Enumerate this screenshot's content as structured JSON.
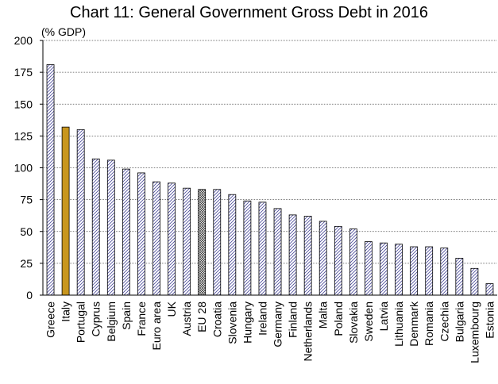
{
  "chart_data": {
    "type": "bar",
    "title": "Chart 11: General Government Gross Debt in 2016",
    "unit_label": "(% GDP)",
    "ylim": [
      0,
      200
    ],
    "yticks": [
      0,
      25,
      50,
      75,
      100,
      125,
      150,
      175,
      200
    ],
    "grid": "horizontal dotted",
    "categories": [
      "Greece",
      "Italy",
      "Portugal",
      "Cyprus",
      "Belgium",
      "Spain",
      "France",
      "Euro area",
      "UK",
      "Austria",
      "EU 28",
      "Croatia",
      "Slovenia",
      "Hungary",
      "Ireland",
      "Germany",
      "Finland",
      "Netherlands",
      "Malta",
      "Poland",
      "Slovakia",
      "Sweden",
      "Latvia",
      "Lithuania",
      "Denmark",
      "Romania",
      "Czechia",
      "Bulgaria",
      "Luxembourg",
      "Estonia"
    ],
    "values": [
      181,
      132,
      130,
      107,
      106,
      99,
      96,
      89,
      88,
      84,
      83,
      83,
      79,
      74,
      73,
      68,
      63,
      62,
      58,
      54,
      52,
      42,
      41,
      40,
      38,
      38,
      37,
      29,
      21,
      9
    ],
    "bar_styles": {
      "default": "diagonal-hatch",
      "highlight": {
        "Italy": "#c8961e"
      },
      "crosshatch": [
        "EU 28"
      ]
    },
    "colors": {
      "hatch_stroke": "#4a4a9a",
      "highlight_fill": "#c8961e",
      "axis": "#000000"
    }
  }
}
